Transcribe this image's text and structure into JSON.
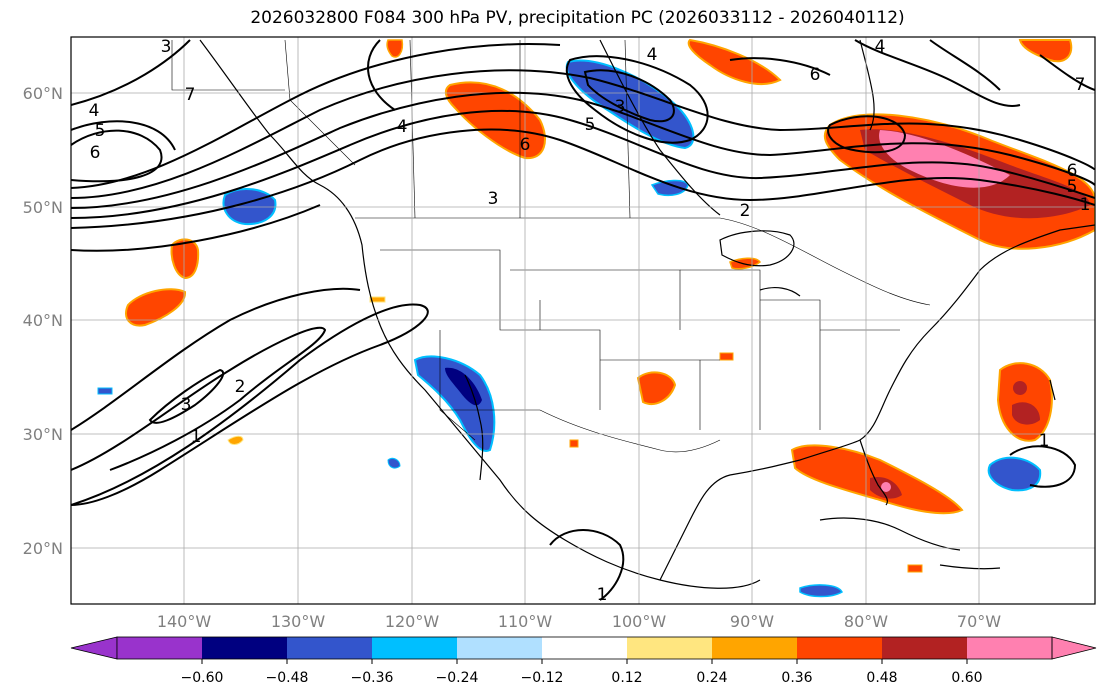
{
  "title": "2026032800 F084 300 hPa PV, precipitation PC (2026033112 - 2026040112)",
  "map": {
    "lat_labels": [
      "60°N",
      "50°N",
      "40°N",
      "30°N",
      "20°N"
    ],
    "lon_labels": [
      "140°W",
      "130°W",
      "120°W",
      "110°W",
      "100°W",
      "90°W",
      "80°W",
      "70°W"
    ],
    "pv_contour_labels": [
      "3",
      "4",
      "5",
      "6",
      "7",
      "6",
      "4",
      "3",
      "4",
      "5",
      "6",
      "7",
      "3",
      "2",
      "6",
      "5",
      "4",
      "3",
      "2",
      "1",
      "1",
      "1",
      "1"
    ],
    "grid": true
  },
  "colorbar": {
    "tick_labels": [
      "−0.60",
      "−0.48",
      "−0.36",
      "−0.24",
      "−0.12",
      "0.12",
      "0.24",
      "0.36",
      "0.48",
      "0.60"
    ],
    "colors": [
      "#9933cc",
      "#000080",
      "#3355cc",
      "#00bfff",
      "#b0e0ff",
      "#ffffff",
      "#ffe680",
      "#ffa500",
      "#ff4500",
      "#b22222",
      "#ff80b0"
    ]
  }
}
